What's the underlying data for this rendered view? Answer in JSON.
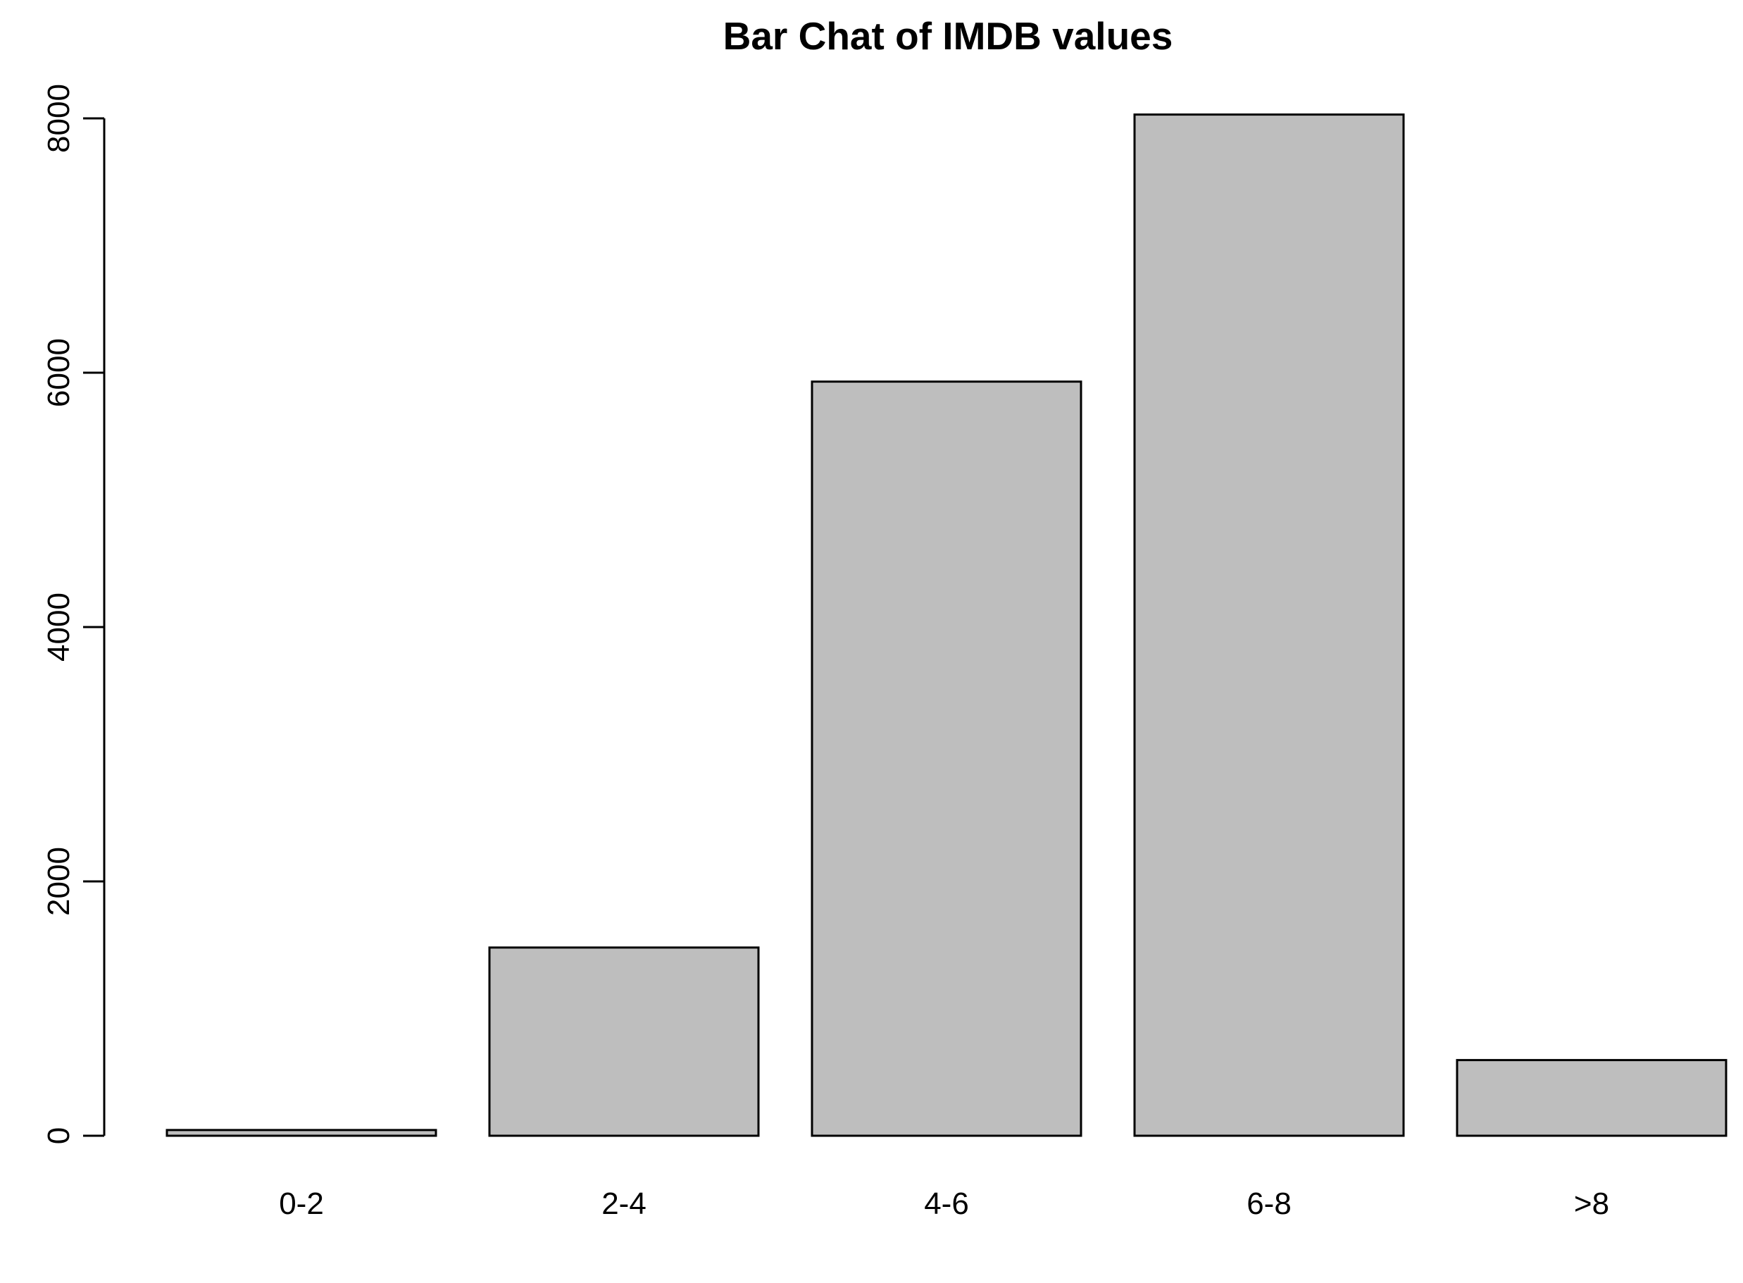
{
  "chart_data": {
    "type": "bar",
    "title": "Bar Chat of IMDB values",
    "xlabel": "",
    "ylabel": "",
    "categories": [
      "0-2",
      "2-4",
      "4-6",
      "6-8",
      ">8"
    ],
    "values": [
      45,
      1480,
      5930,
      8030,
      595
    ],
    "ylim": [
      0,
      8000
    ],
    "yticks": [
      0,
      2000,
      4000,
      6000,
      8000
    ],
    "ytick_labels": [
      "0",
      "2000",
      "4000",
      "6000",
      "8000"
    ],
    "grid": false,
    "bar_color": "#bebebe",
    "bar_border_color": "#000000"
  }
}
